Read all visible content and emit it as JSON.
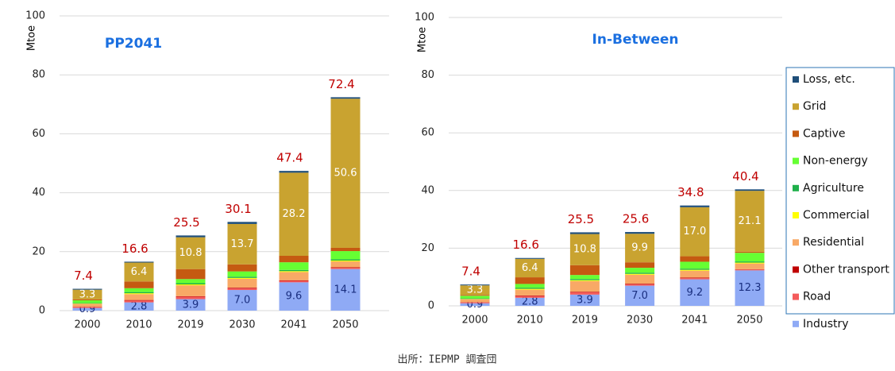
{
  "chart_data": [
    {
      "type": "bar",
      "stacked": true,
      "title": "PP2041",
      "y_label": "Mtoe",
      "categories": [
        "2000",
        "2010",
        "2019",
        "2030",
        "2041",
        "2050"
      ],
      "ylim": [
        0,
        100
      ],
      "yticks": [
        0,
        20,
        40,
        60,
        80,
        100
      ],
      "grid": true,
      "series": [
        {
          "color": "#8faaf5",
          "values": [
            0.9,
            2.8,
            3.9,
            7.0,
            9.6,
            14.1
          ],
          "value_labels": [
            "0.9",
            "2.8",
            "3.9",
            "7.0",
            "9.6",
            "14.1"
          ]
        },
        {
          "color": "#f45b5b",
          "values": [
            0.3,
            0.6,
            0.8,
            0.6,
            0.5,
            0.4
          ]
        },
        {
          "color": "#c00000",
          "values": [
            0.1,
            0.2,
            0.2,
            0.2,
            0.2,
            0.2
          ]
        },
        {
          "color": "#f8a966",
          "values": [
            1.0,
            2.0,
            3.7,
            3.0,
            2.8,
            2.0
          ]
        },
        {
          "color": "#ffff00",
          "values": [
            0.1,
            0.3,
            0.3,
            0.3,
            0.3,
            0.3
          ]
        },
        {
          "color": "#1fb04b",
          "values": [
            0.2,
            0.4,
            0.4,
            0.4,
            0.4,
            0.4
          ]
        },
        {
          "color": "#66ff33",
          "values": [
            0.9,
            1.3,
            1.4,
            1.8,
            2.6,
            2.8
          ]
        },
        {
          "color": "#c55a11",
          "values": [
            0.3,
            2.3,
            3.4,
            2.4,
            2.2,
            1.1
          ]
        },
        {
          "color": "#c9a330",
          "values": [
            3.3,
            6.4,
            10.8,
            13.7,
            28.2,
            50.6
          ],
          "value_labels": [
            "3.3",
            "6.4",
            "10.8",
            "13.7",
            "28.2",
            "50.6"
          ]
        },
        {
          "color": "#1f4e79",
          "values": [
            0.3,
            0.3,
            0.6,
            0.7,
            0.6,
            0.5
          ]
        }
      ],
      "totals": [
        7.4,
        16.6,
        25.5,
        30.1,
        47.4,
        72.4
      ]
    },
    {
      "type": "bar",
      "stacked": true,
      "title": "In-Between",
      "y_label": "Mtoe",
      "categories": [
        "2000",
        "2010",
        "2019",
        "2030",
        "2041",
        "2050"
      ],
      "ylim": [
        0,
        100
      ],
      "yticks": [
        0,
        20,
        40,
        60,
        80,
        100
      ],
      "grid": true,
      "legend": "right",
      "series": [
        {
          "name": "Industry",
          "color": "#8faaf5",
          "values": [
            0.9,
            2.8,
            3.9,
            7.0,
            9.2,
            12.3
          ],
          "value_labels": [
            "0.9",
            "2.8",
            "3.9",
            "7.0",
            "9.2",
            "12.3"
          ]
        },
        {
          "name": "Road",
          "color": "#f45b5b",
          "values": [
            0.3,
            0.6,
            0.8,
            0.5,
            0.4,
            0.3
          ]
        },
        {
          "name": "Other transport",
          "color": "#c00000",
          "values": [
            0.1,
            0.2,
            0.2,
            0.2,
            0.2,
            0.1
          ]
        },
        {
          "name": "Residential",
          "color": "#f8a966",
          "values": [
            1.0,
            2.0,
            3.7,
            3.1,
            2.4,
            2.0
          ]
        },
        {
          "name": "Commercial",
          "color": "#ffff00",
          "values": [
            0.1,
            0.3,
            0.3,
            0.3,
            0.3,
            0.3
          ]
        },
        {
          "name": "Agriculture",
          "color": "#1fb04b",
          "values": [
            0.2,
            0.4,
            0.4,
            0.4,
            0.4,
            0.4
          ]
        },
        {
          "name": "Non-energy",
          "color": "#66ff33",
          "values": [
            0.9,
            1.3,
            1.4,
            1.7,
            2.4,
            3.0
          ]
        },
        {
          "name": "Captive",
          "color": "#c55a11",
          "values": [
            0.3,
            2.3,
            3.4,
            1.9,
            1.9,
            0.4
          ]
        },
        {
          "name": "Grid",
          "color": "#c9a330",
          "values": [
            3.3,
            6.4,
            10.8,
            9.9,
            17.0,
            21.1
          ],
          "value_labels": [
            "3.3",
            "6.4",
            "10.8",
            "9.9",
            "17.0",
            "21.1"
          ]
        },
        {
          "name": "Loss, etc.",
          "color": "#1f4e79",
          "values": [
            0.3,
            0.3,
            0.6,
            0.6,
            0.6,
            0.5
          ]
        }
      ],
      "totals": [
        7.4,
        16.6,
        25.5,
        25.6,
        34.8,
        40.4
      ]
    }
  ],
  "source": "出所：IEPMP 調査団"
}
